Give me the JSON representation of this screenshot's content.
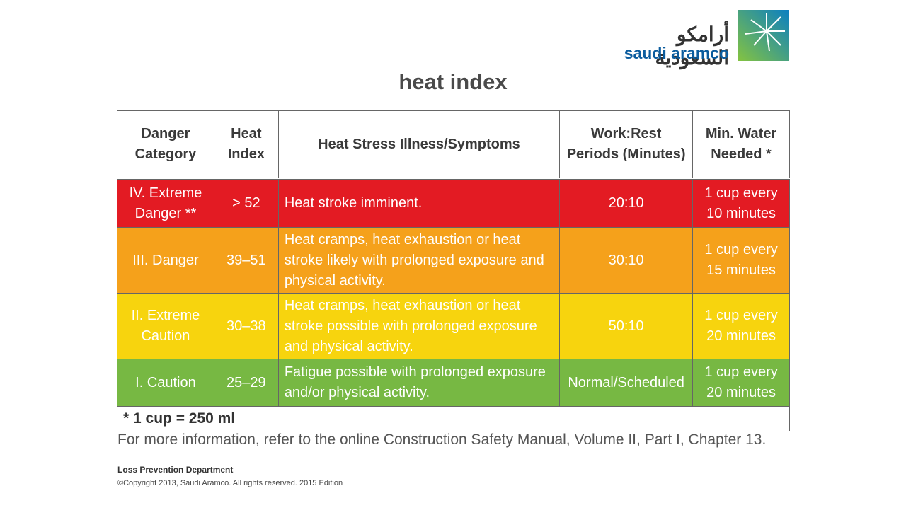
{
  "logo": {
    "arabic": "أرامكو السعودية",
    "latin": "saudi aramco"
  },
  "title": "heat index",
  "table": {
    "header": [
      "Danger Category",
      "Heat Index",
      "Heat Stress Illness/Symptoms",
      "Work:Rest Periods (Minutes)",
      "Min. Water Needed *"
    ],
    "rows": [
      [
        "IV. Extreme Danger **",
        "> 52",
        "Heat stroke imminent.",
        "20:10",
        "1 cup every 10 minutes"
      ],
      [
        "III. Danger",
        "39–51",
        "Heat cramps, heat exhaustion or heat stroke likely with prolonged exposure and physical activity.",
        "30:10",
        "1 cup every 15 minutes"
      ],
      [
        "II. Extreme Caution",
        "30–38",
        "Heat cramps, heat exhaustion or heat stroke possible with prolonged exposure and physical activity.",
        "50:10",
        "1 cup every 20 minutes"
      ],
      [
        "I. Caution",
        "25–29",
        "Fatigue possible with prolonged exposure and/or physical activity.",
        "Normal/Scheduled",
        "1 cup every 20 minutes"
      ]
    ],
    "footnote": "* 1 cup = 250 ml"
  },
  "info": "For more information, refer to the online Construction Safety Manual, Volume II, Part I, Chapter 13.",
  "footer": {
    "department": "Loss Prevention Department",
    "copyright": "©Copyright 2013, Saudi Aramco. All rights reserved. 2015 Edition"
  }
}
